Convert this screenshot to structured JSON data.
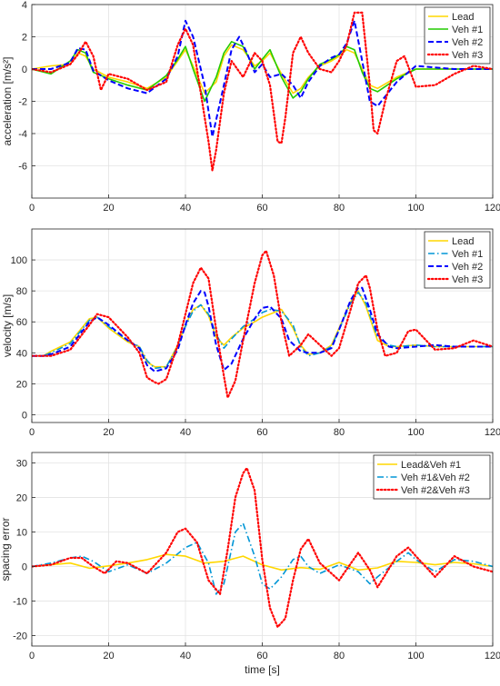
{
  "figure": {
    "xlabel": "time [s]"
  },
  "chart_data": [
    {
      "type": "line",
      "title": "",
      "xlabel": "",
      "ylabel": "acceleration [m/s²]",
      "xlim": [
        0,
        120
      ],
      "ylim": [
        -8,
        4
      ],
      "xticks": [
        0,
        20,
        40,
        60,
        80,
        100,
        120
      ],
      "yticks": [
        -6,
        -4,
        -2,
        0,
        2,
        4
      ],
      "grid": true,
      "legend_position": "top-right",
      "series": [
        {
          "name": "Lead",
          "color": "#ffd700",
          "dash": "solid",
          "x": [
            0,
            5,
            10,
            12,
            14,
            16,
            20,
            25,
            30,
            35,
            38,
            40,
            42,
            45,
            48,
            50,
            52,
            55,
            58,
            60,
            62,
            65,
            68,
            70,
            72,
            75,
            78,
            80,
            82,
            84,
            86,
            88,
            90,
            95,
            100,
            110,
            120
          ],
          "y": [
            0,
            0.2,
            0.3,
            1.0,
            0.8,
            0,
            -0.5,
            -0.8,
            -1.2,
            -0.5,
            0.5,
            1.2,
            0.2,
            -1.5,
            -0.8,
            0.8,
            1.5,
            1.2,
            0.2,
            0.5,
            1.0,
            -0.3,
            -1.5,
            -1.2,
            -0.5,
            0.2,
            0.5,
            0.8,
            1.2,
            1.0,
            0,
            -1.0,
            -1.2,
            -0.5,
            0,
            0,
            0
          ]
        },
        {
          "name": "Veh #1",
          "color": "#22cc00",
          "dash": "solid",
          "x": [
            0,
            5,
            10,
            12,
            14,
            16,
            20,
            25,
            30,
            35,
            38,
            40,
            42,
            45,
            48,
            50,
            52,
            55,
            58,
            60,
            62,
            65,
            68,
            70,
            72,
            75,
            78,
            80,
            82,
            84,
            86,
            88,
            90,
            95,
            100,
            110,
            120
          ],
          "y": [
            0,
            -0.3,
            0.5,
            1.2,
            1.0,
            -0.2,
            -0.6,
            -1.0,
            -1.3,
            -0.4,
            0.6,
            1.4,
            0,
            -2.0,
            -0.5,
            1.0,
            1.7,
            1.4,
            0,
            0.6,
            1.2,
            -0.5,
            -1.8,
            -1.4,
            -0.6,
            0.3,
            0.6,
            0.9,
            1.4,
            1.2,
            -0.2,
            -1.2,
            -1.4,
            -0.6,
            0,
            0,
            0
          ]
        },
        {
          "name": "Veh #2",
          "color": "#0000ff",
          "dash": "dashed",
          "x": [
            0,
            5,
            10,
            12,
            14,
            16,
            20,
            25,
            30,
            35,
            38,
            40,
            42,
            45,
            47,
            50,
            52,
            54,
            56,
            58,
            60,
            62,
            65,
            68,
            70,
            72,
            75,
            78,
            80,
            82,
            84,
            86,
            88,
            90,
            95,
            100,
            110,
            120
          ],
          "y": [
            0,
            0,
            0.4,
            1.3,
            1.2,
            -0.1,
            -0.7,
            -1.2,
            -1.5,
            -0.6,
            0.8,
            3.0,
            2.0,
            -1.0,
            -4.2,
            -1.0,
            1.2,
            2.0,
            1.0,
            -0.2,
            0.3,
            -0.5,
            -0.3,
            -1.0,
            -1.8,
            -0.8,
            0.2,
            0.7,
            0.9,
            1.6,
            3.0,
            0.5,
            -2.0,
            -2.3,
            -0.8,
            0.2,
            0,
            0
          ]
        },
        {
          "name": "Veh #3",
          "color": "#ff0000",
          "dash": "dotted",
          "x": [
            0,
            5,
            10,
            12,
            14,
            16,
            18,
            20,
            25,
            30,
            35,
            38,
            40,
            42,
            44,
            46,
            47,
            48,
            50,
            52,
            55,
            58,
            60,
            62,
            64,
            65,
            66,
            68,
            70,
            72,
            75,
            78,
            80,
            82,
            84,
            86,
            88,
            89,
            90,
            92,
            95,
            97,
            100,
            105,
            110,
            115,
            120
          ],
          "y": [
            0,
            -0.2,
            0.3,
            0.9,
            1.7,
            0.8,
            -1.3,
            -0.3,
            -0.6,
            -1.3,
            -0.8,
            1.5,
            2.5,
            1.5,
            -1.5,
            -4.5,
            -6.3,
            -5.0,
            -1.5,
            0.5,
            -0.5,
            1.0,
            0.5,
            -1.0,
            -4.5,
            -4.6,
            -3.0,
            1.0,
            2.0,
            1.0,
            0,
            -0.2,
            0.5,
            1.5,
            3.5,
            3.5,
            -1.0,
            -3.8,
            -4.0,
            -2.0,
            0.5,
            0.8,
            -1.1,
            -1.0,
            -0.3,
            0.2,
            0
          ]
        }
      ]
    },
    {
      "type": "line",
      "title": "",
      "xlabel": "",
      "ylabel": "velocity [m/s]",
      "xlim": [
        0,
        120
      ],
      "ylim": [
        -5,
        120
      ],
      "xticks": [
        0,
        20,
        40,
        60,
        80,
        100,
        120
      ],
      "yticks": [
        0,
        20,
        40,
        60,
        80,
        100
      ],
      "grid": true,
      "legend_position": "top-right",
      "series": [
        {
          "name": "Lead",
          "color": "#ffd700",
          "dash": "solid",
          "x": [
            0,
            3,
            5,
            10,
            15,
            17,
            20,
            25,
            28,
            30,
            32,
            35,
            38,
            40,
            42,
            44,
            46,
            48,
            50,
            52,
            55,
            58,
            60,
            62,
            65,
            68,
            70,
            72,
            75,
            78,
            80,
            83,
            85,
            87,
            90,
            93,
            95,
            100,
            105,
            110,
            115,
            120
          ],
          "y": [
            38,
            38,
            41,
            47,
            62,
            63,
            56,
            47,
            44,
            34,
            31,
            31,
            45,
            58,
            68,
            71,
            64,
            50,
            45,
            50,
            56,
            60,
            63,
            65,
            68,
            56,
            45,
            39,
            40,
            45,
            56,
            73,
            80,
            70,
            48,
            44,
            44,
            45,
            44,
            44,
            44,
            44
          ]
        },
        {
          "name": "Veh #1",
          "color": "#0096d6",
          "dash": "dashdot",
          "x": [
            0,
            3,
            5,
            10,
            15,
            17,
            20,
            25,
            28,
            30,
            32,
            35,
            38,
            40,
            42,
            44,
            46,
            48,
            50,
            52,
            55,
            58,
            60,
            62,
            65,
            68,
            70,
            72,
            75,
            78,
            80,
            83,
            85,
            87,
            90,
            93,
            95,
            100,
            105,
            110,
            115,
            120
          ],
          "y": [
            38,
            38,
            40,
            46,
            61,
            63,
            57,
            48,
            44,
            35,
            30,
            31,
            44,
            57,
            67,
            71,
            65,
            52,
            43,
            49,
            57,
            62,
            66,
            68,
            67,
            58,
            44,
            38,
            40,
            44,
            55,
            72,
            79,
            72,
            50,
            45,
            44,
            45,
            44,
            44,
            44,
            44
          ]
        },
        {
          "name": "Veh #2",
          "color": "#0000ff",
          "dash": "dashed",
          "x": [
            0,
            3,
            5,
            10,
            15,
            17,
            20,
            25,
            28,
            30,
            32,
            35,
            38,
            40,
            42,
            44,
            45,
            46,
            48,
            50,
            52,
            55,
            58,
            60,
            62,
            65,
            67,
            70,
            72,
            75,
            78,
            80,
            83,
            85,
            86,
            88,
            90,
            93,
            95,
            100,
            105,
            110,
            115,
            120
          ],
          "y": [
            38,
            38,
            39,
            44,
            60,
            63,
            58,
            48,
            43,
            32,
            28,
            30,
            42,
            58,
            72,
            80,
            79,
            70,
            45,
            29,
            33,
            49,
            62,
            69,
            70,
            62,
            48,
            41,
            40,
            40,
            43,
            55,
            74,
            82,
            82,
            68,
            52,
            44,
            43,
            44,
            45,
            44,
            44,
            44
          ]
        },
        {
          "name": "Veh #3",
          "color": "#ff0000",
          "dash": "dotted",
          "x": [
            0,
            3,
            5,
            10,
            15,
            17,
            20,
            25,
            28,
            30,
            32,
            33,
            35,
            38,
            40,
            42,
            44,
            46,
            48,
            50,
            51,
            53,
            55,
            58,
            60,
            61,
            63,
            65,
            67,
            70,
            72,
            75,
            78,
            80,
            83,
            85,
            87,
            88,
            90,
            92,
            95,
            98,
            100,
            105,
            110,
            115,
            120
          ],
          "y": [
            38,
            38,
            38,
            42,
            58,
            65,
            63,
            50,
            40,
            24,
            21,
            20,
            23,
            45,
            65,
            85,
            95,
            88,
            55,
            25,
            11,
            22,
            48,
            85,
            103,
            106,
            90,
            60,
            38,
            45,
            52,
            45,
            38,
            43,
            68,
            85,
            90,
            82,
            55,
            38,
            40,
            54,
            55,
            42,
            43,
            48,
            44
          ]
        }
      ]
    },
    {
      "type": "line",
      "title": "",
      "xlabel": "time [s]",
      "ylabel": "spacing error",
      "xlim": [
        0,
        120
      ],
      "ylim": [
        -23,
        33
      ],
      "xticks": [
        0,
        20,
        40,
        60,
        80,
        100,
        120
      ],
      "yticks": [
        -20,
        -10,
        0,
        10,
        20,
        30
      ],
      "grid": true,
      "legend_position": "top-right",
      "series": [
        {
          "name": "Lead&Veh #1",
          "color": "#ffd700",
          "dash": "solid",
          "x": [
            0,
            5,
            10,
            15,
            20,
            25,
            30,
            35,
            40,
            45,
            50,
            55,
            60,
            65,
            70,
            75,
            80,
            85,
            90,
            95,
            100,
            105,
            110,
            115,
            120
          ],
          "y": [
            0,
            0.5,
            1.0,
            -0.5,
            0.2,
            1.0,
            2.0,
            3.5,
            3.0,
            1.0,
            1.5,
            3.0,
            0.5,
            -1.0,
            -0.3,
            -0.8,
            1.2,
            -1.0,
            -0.4,
            1.5,
            1.2,
            0.5,
            1.2,
            0.8,
            0
          ]
        },
        {
          "name": "Veh #1&Veh #2",
          "color": "#0096d6",
          "dash": "dashdot",
          "x": [
            0,
            5,
            10,
            13,
            16,
            20,
            25,
            30,
            35,
            40,
            43,
            46,
            48,
            50,
            53,
            55,
            58,
            60,
            62,
            65,
            68,
            70,
            72,
            75,
            80,
            85,
            88,
            90,
            95,
            98,
            100,
            105,
            110,
            115,
            120
          ],
          "y": [
            0,
            1.0,
            2.5,
            3.0,
            1.5,
            -1.5,
            0.5,
            -2.0,
            1.0,
            5.5,
            7.0,
            1.0,
            -8.0,
            -5.0,
            10.0,
            12.5,
            3.0,
            -5.0,
            -6.5,
            -3.0,
            2.0,
            3.0,
            0,
            -2.0,
            0.5,
            -1.5,
            -5.0,
            -3.0,
            1.5,
            4.0,
            2.0,
            -1.5,
            2.0,
            1.5,
            0
          ]
        },
        {
          "name": "Veh #2&Veh #3",
          "color": "#ff0000",
          "dash": "dotted",
          "x": [
            0,
            5,
            10,
            13,
            16,
            19,
            22,
            25,
            30,
            35,
            38,
            40,
            43,
            46,
            49,
            51,
            53,
            55,
            56,
            58,
            60,
            62,
            64,
            66,
            68,
            70,
            72,
            75,
            80,
            85,
            88,
            90,
            95,
            98,
            100,
            105,
            110,
            115,
            120
          ],
          "y": [
            0,
            0.5,
            2.5,
            2.5,
            0,
            -2.0,
            1.5,
            1.0,
            -2.0,
            4.0,
            10.0,
            11.0,
            7.0,
            -4.0,
            -8.0,
            5.0,
            20.0,
            27.0,
            28.5,
            22.0,
            2.0,
            -12.0,
            -17.5,
            -15.0,
            -4.0,
            5.0,
            8.0,
            1.0,
            -4.0,
            4.0,
            -1.0,
            -6.0,
            3.0,
            5.5,
            3.0,
            -3.0,
            3.0,
            0,
            -1.5
          ]
        }
      ]
    }
  ]
}
